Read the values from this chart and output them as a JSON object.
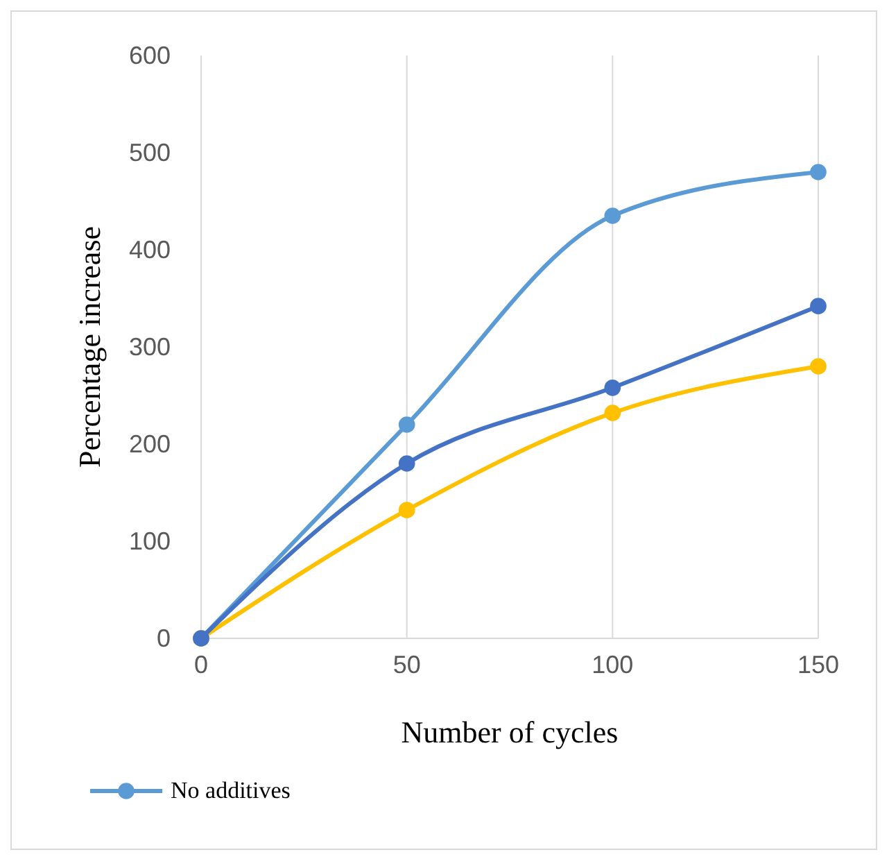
{
  "chart_data": {
    "type": "line",
    "xlabel": "Number of cycles",
    "ylabel": "Percentage  increase",
    "x": [
      0,
      50,
      100,
      150
    ],
    "series": [
      {
        "name": "No additives",
        "color": "#5b9bd5",
        "values": [
          0,
          220,
          435,
          480
        ]
      },
      {
        "color": "#ffc000",
        "values": [
          0,
          132,
          232,
          280
        ]
      },
      {
        "color": "#4472c4",
        "values": [
          0,
          180,
          258,
          342
        ]
      }
    ],
    "xlim": [
      0,
      150
    ],
    "xticks": [
      0,
      50,
      100,
      150
    ],
    "ylim": [
      0,
      600
    ],
    "yticks": [
      0,
      100,
      200,
      300,
      400,
      500,
      600
    ],
    "grid": "x",
    "legend": "bottom",
    "marker": "circle",
    "line_style": "solid"
  }
}
